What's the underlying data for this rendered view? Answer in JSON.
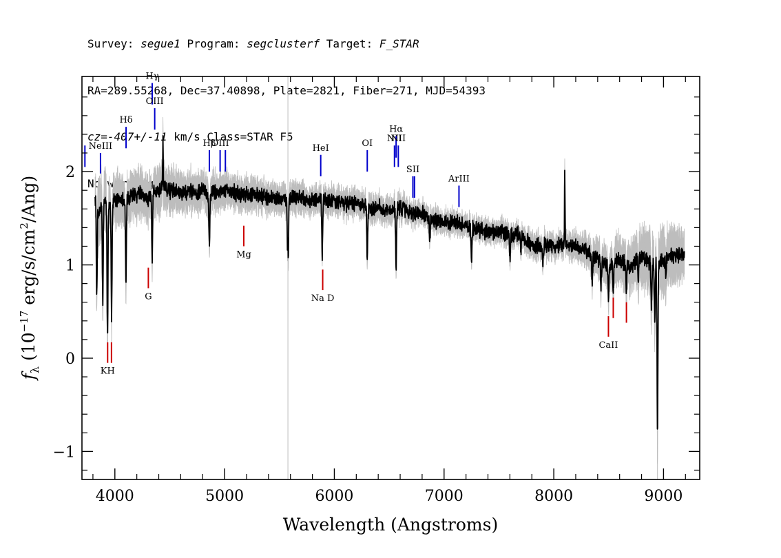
{
  "header": {
    "line1": {
      "survey_key": "Survey: ",
      "survey": "segue1",
      "program_key": " Program: ",
      "program": "segclusterf",
      "target_key": " Target: ",
      "target": "F_STAR"
    },
    "line2": "RA=289.55268, Dec=37.40898, Plate=2821, Fiber=271, MJD=54393",
    "line3": {
      "cz_key": "cz=",
      "cz": "-407+/-11",
      "rest": " km/s Class=STAR F5"
    },
    "line4": "No warnings."
  },
  "chart_data": {
    "type": "line",
    "xlabel": "Wavelength (Angstroms)",
    "ylabel": "f_λ (10^-17 erg/s/cm^2/Ang)",
    "xlim": [
      3700,
      9330
    ],
    "ylim": [
      -1.3,
      3.02
    ],
    "xticks": [
      4000,
      5000,
      6000,
      7000,
      8000,
      9000
    ],
    "xtick_labels": [
      "4000",
      "5000",
      "6000",
      "7000",
      "8000",
      "9000"
    ],
    "yticks": [
      -1,
      0,
      1,
      2
    ],
    "ytick_labels": [
      "−1",
      "0",
      "1",
      "2"
    ],
    "grid": false,
    "series": [
      {
        "role": "flux",
        "color": "#000000",
        "x": [
          3820,
          3850,
          3900,
          3950,
          4000,
          4050,
          4100,
          4150,
          4200,
          4250,
          4300,
          4350,
          4400,
          4450,
          4500,
          4550,
          4600,
          4650,
          4700,
          4750,
          4800,
          4850,
          4900,
          4950,
          5000,
          5100,
          5200,
          5300,
          5400,
          5500,
          5600,
          5700,
          5800,
          5900,
          6000,
          6100,
          6200,
          6300,
          6400,
          6500,
          6600,
          6700,
          6800,
          6900,
          7000,
          7100,
          7200,
          7300,
          7400,
          7500,
          7600,
          7700,
          7800,
          7900,
          8000,
          8100,
          8200,
          8300,
          8400,
          8500,
          8600,
          8700,
          8800,
          8900,
          9000,
          9100,
          9190
        ],
        "y": [
          1.75,
          1.55,
          1.7,
          1.6,
          1.72,
          1.68,
          1.7,
          1.75,
          1.73,
          1.78,
          1.7,
          1.78,
          1.8,
          1.85,
          1.78,
          1.8,
          1.75,
          1.78,
          1.8,
          1.76,
          1.82,
          1.72,
          1.8,
          1.78,
          1.8,
          1.77,
          1.76,
          1.75,
          1.72,
          1.7,
          1.72,
          1.72,
          1.68,
          1.7,
          1.68,
          1.66,
          1.66,
          1.6,
          1.62,
          1.58,
          1.62,
          1.55,
          1.55,
          1.48,
          1.45,
          1.45,
          1.42,
          1.38,
          1.35,
          1.35,
          1.32,
          1.33,
          1.2,
          1.22,
          1.2,
          1.22,
          1.2,
          1.15,
          1.05,
          1.0,
          1.05,
          0.98,
          1.1,
          1.0,
          1.05,
          1.1,
          1.12
        ]
      },
      {
        "role": "error",
        "color": "#bdbdbd",
        "values": [
          0.15,
          0.3,
          0.25,
          0.2,
          0.2,
          0.2,
          0.2,
          0.18,
          0.18,
          0.18,
          0.18,
          0.18,
          0.2,
          0.2,
          0.16,
          0.15,
          0.15,
          0.15,
          0.15,
          0.15,
          0.14,
          0.14,
          0.14,
          0.13,
          0.13,
          0.12,
          0.12,
          0.12,
          0.11,
          0.11,
          0.11,
          0.11,
          0.1,
          0.1,
          0.1,
          0.1,
          0.1,
          0.1,
          0.1,
          0.1,
          0.1,
          0.08,
          0.08,
          0.08,
          0.08,
          0.08,
          0.08,
          0.08,
          0.08,
          0.08,
          0.08,
          0.08,
          0.09,
          0.09,
          0.09,
          0.09,
          0.1,
          0.12,
          0.14,
          0.16,
          0.18,
          0.2,
          0.22,
          0.25,
          0.25,
          0.22,
          0.2
        ]
      }
    ],
    "absorption_dips": [
      {
        "x": 3835,
        "y": 0.65
      },
      {
        "x": 3890,
        "y": 0.6
      },
      {
        "x": 3933,
        "y": 0.22
      },
      {
        "x": 3970,
        "y": 0.45
      },
      {
        "x": 4101,
        "y": 0.78
      },
      {
        "x": 4340,
        "y": 1.07
      },
      {
        "x": 4861,
        "y": 1.17
      },
      {
        "x": 5577,
        "y": 0.1
      },
      {
        "x": 5890,
        "y": 1.08
      },
      {
        "x": 6300,
        "y": 1.1
      },
      {
        "x": 6563,
        "y": 0.95
      },
      {
        "x": 6870,
        "y": 1.25
      },
      {
        "x": 7250,
        "y": 1.0
      },
      {
        "x": 7600,
        "y": 1.08
      },
      {
        "x": 7700,
        "y": 1.1
      },
      {
        "x": 7900,
        "y": 1.0
      },
      {
        "x": 8350,
        "y": 0.8
      },
      {
        "x": 8430,
        "y": 0.75
      },
      {
        "x": 8498,
        "y": 0.65
      },
      {
        "x": 8542,
        "y": 0.7
      },
      {
        "x": 8662,
        "y": 0.7
      },
      {
        "x": 8770,
        "y": 0.82
      },
      {
        "x": 8890,
        "y": 0.55
      },
      {
        "x": 8920,
        "y": 0.35
      },
      {
        "x": 8945,
        "y": -0.83
      },
      {
        "x": 9020,
        "y": 0.9
      }
    ],
    "emission_spikes": [
      {
        "x": 4438,
        "y": 2.35
      },
      {
        "x": 5577,
        "y": 2.95
      },
      {
        "x": 8100,
        "y": 2.05
      }
    ],
    "emission_lines": [
      {
        "label": "",
        "x": 3727,
        "y1": 2.05,
        "y2": 2.28
      },
      {
        "label": "NeIII",
        "x": 3869,
        "y1": 1.98,
        "y2": 2.2
      },
      {
        "label": "Hδ",
        "x": 4102,
        "y1": 2.25,
        "y2": 2.48
      },
      {
        "label": "Hγ",
        "x": 4340,
        "y1": 2.72,
        "y2": 2.95
      },
      {
        "label": "OIII",
        "x": 4363,
        "y1": 2.45,
        "y2": 2.68
      },
      {
        "label": "Hβ",
        "x": 4861,
        "y1": 2.0,
        "y2": 2.23
      },
      {
        "label": "OIII",
        "x": 4959,
        "y1": 2.0,
        "y2": 2.23
      },
      {
        "label": "",
        "x": 5007,
        "y1": 2.0,
        "y2": 2.23
      },
      {
        "label": "HeI",
        "x": 5876,
        "y1": 1.95,
        "y2": 2.18
      },
      {
        "label": "OI",
        "x": 6300,
        "y1": 2.0,
        "y2": 2.23
      },
      {
        "label": "NII",
        "x": 6548,
        "y1": 2.05,
        "y2": 2.28
      },
      {
        "label": "Hα",
        "x": 6563,
        "y1": 2.15,
        "y2": 2.38
      },
      {
        "label": "NII",
        "x": 6583,
        "y1": 2.05,
        "y2": 2.28
      },
      {
        "label": "SII",
        "x": 6716,
        "y1": 1.72,
        "y2": 1.95
      },
      {
        "label": "",
        "x": 6731,
        "y1": 1.72,
        "y2": 1.95
      },
      {
        "label": "ArIII",
        "x": 7136,
        "y1": 1.62,
        "y2": 1.85
      }
    ],
    "absorption_lines": [
      {
        "label": "KH",
        "x": 3934,
        "y1": -0.05,
        "y2": 0.17
      },
      {
        "label": "",
        "x": 3969,
        "y1": -0.05,
        "y2": 0.17
      },
      {
        "label": "G",
        "x": 4305,
        "y1": 0.75,
        "y2": 0.97
      },
      {
        "label": "Mg",
        "x": 5175,
        "y1": 1.2,
        "y2": 1.42
      },
      {
        "label": "Na D",
        "x": 5894,
        "y1": 0.73,
        "y2": 0.95
      },
      {
        "label": "CaII",
        "x": 8498,
        "y1": 0.23,
        "y2": 0.45
      },
      {
        "label": "",
        "x": 8542,
        "y1": 0.43,
        "y2": 0.65
      },
      {
        "label": "",
        "x": 8662,
        "y1": 0.38,
        "y2": 0.6
      }
    ],
    "colors": {
      "emission": "#0000cc",
      "absorption": "#cc0000",
      "flux": "#000000",
      "error": "#bdbdbd"
    }
  }
}
